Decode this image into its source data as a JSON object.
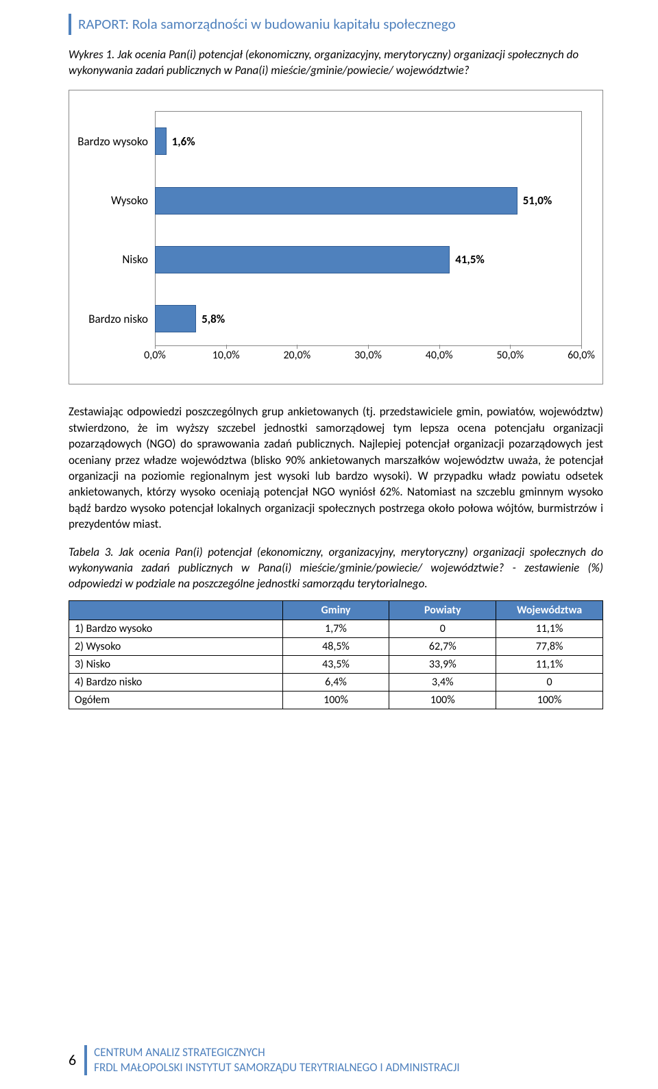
{
  "header": {
    "title": "RAPORT: Rola samorządności w budowaniu kapitału społecznego"
  },
  "figure": {
    "caption": "Wykres 1. Jak ocenia Pan(i) potencjał (ekonomiczny, organizacyjny, merytoryczny) organizacji społecznych do wykonywania zadań publicznych w Pana(i) mieście/gminie/powiecie/ województwie?",
    "chart": {
      "type": "bar-horizontal",
      "categories": [
        "Bardzo wysoko",
        "Wysoko",
        "Nisko",
        "Bardzo nisko"
      ],
      "values": [
        1.6,
        51.0,
        41.5,
        5.8
      ],
      "value_labels": [
        "1,6%",
        "51,0%",
        "41,5%",
        "5,8%"
      ],
      "xmin": 0,
      "xmax": 60,
      "xtick_step": 10,
      "xtick_labels": [
        "0,0%",
        "10,0%",
        "20,0%",
        "30,0%",
        "40,0%",
        "50,0%",
        "60,0%"
      ],
      "bar_color": "#4f81bd",
      "bar_border": "#2f5b93",
      "label_fontsize": 17,
      "value_fontsize": 17,
      "tick_fontsize": 16,
      "plot_border_color": "#888888",
      "background_color": "#ffffff"
    }
  },
  "paragraph": "Zestawiając odpowiedzi poszczególnych grup ankietowanych (tj. przedstawiciele gmin, powiatów, województw) stwierdzono, że im wyższy szczebel jednostki samorządowej tym lepsza ocena potencjału organizacji pozarządowych (NGO) do sprawowania zadań publicznych. Najlepiej potencjał organizacji pozarządowych jest oceniany przez władze województwa (blisko 90% ankietowanych marszałków województw uważa, że potencjał organizacji na poziomie regionalnym jest wysoki lub bardzo wysoki). W przypadku władz powiatu odsetek ankietowanych, którzy wysoko oceniają potencjał NGO wyniósł 62%. Natomiast na szczeblu gminnym wysoko bądź bardzo wysoko potencjał lokalnych organizacji społecznych postrzega około połowa wójtów, burmistrzów i prezydentów miast.",
  "table": {
    "caption": "Tabela 3. Jak ocenia Pan(i) potencjał (ekonomiczny, organizacyjny, merytoryczny) organizacji społecznych do wykonywania zadań publicznych w Pana(i) mieście/gminie/powiecie/ województwie? - zestawienie (%) odpowiedzi w podziale na poszczególne jednostki samorządu terytorialnego.",
    "columns": [
      "",
      "Gminy",
      "Powiaty",
      "Województwa"
    ],
    "rows": [
      [
        "1) Bardzo wysoko",
        "1,7%",
        "0",
        "11,1%"
      ],
      [
        "2) Wysoko",
        "48,5%",
        "62,7%",
        "77,8%"
      ],
      [
        "3) Nisko",
        "43,5%",
        "33,9%",
        "11,1%"
      ],
      [
        "4) Bardzo nisko",
        "6,4%",
        "3,4%",
        "0"
      ],
      [
        "Ogółem",
        "100%",
        "100%",
        "100%"
      ]
    ],
    "header_bg": "#4f81bd",
    "header_fg": "#ffffff",
    "border_color": "#000000",
    "col_widths": [
      "40%",
      "20%",
      "20%",
      "20%"
    ]
  },
  "footer": {
    "page": "6",
    "line1": "CENTRUM ANALIZ STRATEGICZNYCH",
    "line2": "FRDL MAŁOPOLSKI INSTYTUT SAMORZĄDU TERYTRIALNEGO I ADMINISTRACJI"
  }
}
